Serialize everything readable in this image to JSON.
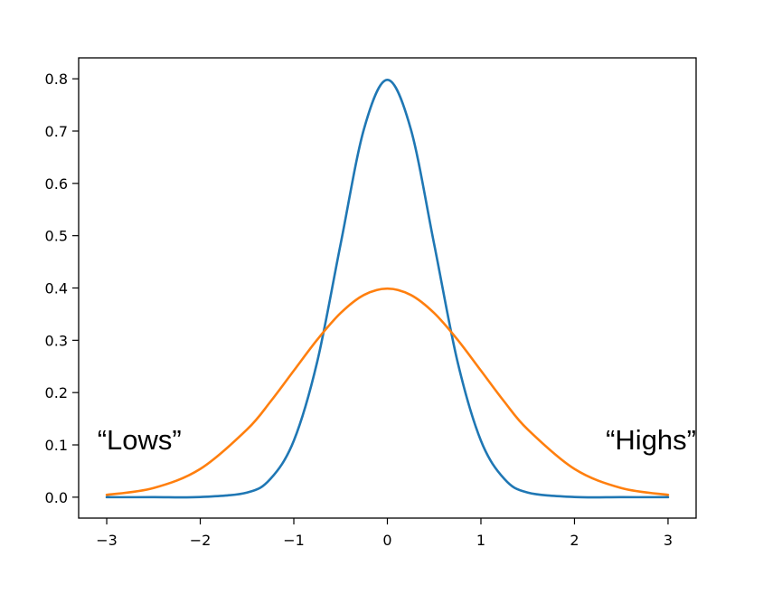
{
  "chart_data": {
    "type": "line",
    "title": "",
    "xlabel": "",
    "ylabel": "",
    "xlim": [
      -3.3,
      3.3
    ],
    "ylim": [
      -0.04,
      0.84
    ],
    "x_ticks": [
      -3,
      -2,
      -1,
      0,
      1,
      2,
      3
    ],
    "x_tick_labels": [
      "−3",
      "−2",
      "−1",
      "0",
      "1",
      "2",
      "3"
    ],
    "y_ticks": [
      0.0,
      0.1,
      0.2,
      0.3,
      0.4,
      0.5,
      0.6,
      0.7,
      0.8
    ],
    "y_tick_labels": [
      "0.0",
      "0.1",
      "0.2",
      "0.3",
      "0.4",
      "0.5",
      "0.6",
      "0.7",
      "0.8"
    ],
    "grid": false,
    "legend": "none",
    "x": [
      -3.0,
      -2.5,
      -2.0,
      -1.5,
      -1.25,
      -1.0,
      -0.75,
      -0.5,
      -0.25,
      0.0,
      0.25,
      0.5,
      0.75,
      1.0,
      1.25,
      1.5,
      2.0,
      2.5,
      3.0
    ],
    "series": [
      {
        "color": "#1f77b4",
        "values": [
          0.0,
          0.0,
          0.0003,
          0.0089,
          0.035,
          0.108,
          0.259,
          0.4839,
          0.7041,
          0.7979,
          0.7041,
          0.4839,
          0.259,
          0.108,
          0.035,
          0.0089,
          0.0003,
          0.0,
          0.0
        ]
      },
      {
        "color": "#ff7f0e",
        "values": [
          0.0044,
          0.0175,
          0.054,
          0.1295,
          0.1826,
          0.242,
          0.3011,
          0.3521,
          0.3867,
          0.3989,
          0.3867,
          0.3521,
          0.3011,
          0.242,
          0.1826,
          0.1295,
          0.054,
          0.0175,
          0.0044
        ]
      }
    ],
    "annotations": [
      {
        "text": "“Lows”",
        "x": -3.1,
        "y": 0.1,
        "align": "left"
      },
      {
        "text": "“Highs”",
        "x": 3.3,
        "y": 0.1,
        "align": "right"
      }
    ]
  }
}
